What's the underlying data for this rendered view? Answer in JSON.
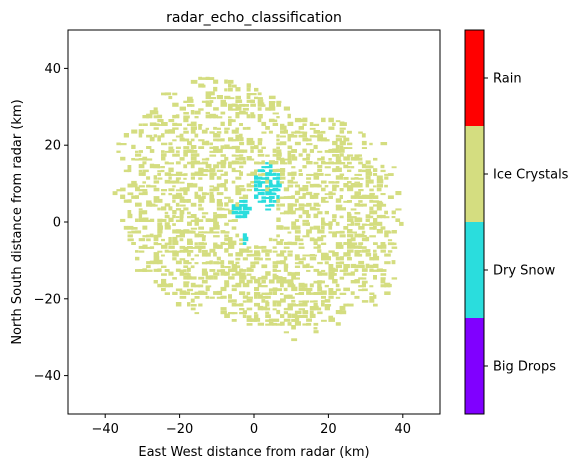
{
  "chart_data": {
    "type": "heatmap",
    "title": "radar_echo_classification",
    "xlabel": "East West distance from radar (km)",
    "ylabel": "North South distance from radar (km)",
    "xlim": [
      -50,
      50
    ],
    "ylim": [
      -50,
      50
    ],
    "xticks": [
      -40,
      -20,
      0,
      20,
      40
    ],
    "yticks": [
      -40,
      -20,
      0,
      20,
      40
    ],
    "xtick_labels": [
      "−40",
      "−20",
      "0",
      "20",
      "40"
    ],
    "ytick_labels": [
      "−40",
      "−20",
      "0",
      "20",
      "40"
    ],
    "grid": false,
    "colorbar": {
      "position": "right",
      "categories": [
        {
          "label": "Big Drops",
          "color": "#8000ff"
        },
        {
          "label": "Dry Snow",
          "color": "#2adddd"
        },
        {
          "label": "Ice Crystals",
          "color": "#d4dd80"
        },
        {
          "label": "Rain",
          "color": "#ff0000"
        }
      ]
    },
    "field": {
      "radius_min_km": 6,
      "radius_max_by_bearing_deg": [
        [
          0,
          37
        ],
        [
          20,
          30
        ],
        [
          40,
          36
        ],
        [
          60,
          40
        ],
        [
          80,
          40
        ],
        [
          100,
          40
        ],
        [
          120,
          41
        ],
        [
          140,
          35
        ],
        [
          160,
          33
        ],
        [
          180,
          29
        ],
        [
          200,
          27
        ],
        [
          220,
          30
        ],
        [
          240,
          33
        ],
        [
          260,
          37
        ],
        [
          280,
          40
        ],
        [
          300,
          43
        ],
        [
          320,
          42
        ],
        [
          340,
          40
        ],
        [
          360,
          37
        ]
      ],
      "dry_snow_patches_km": [
        {
          "x": 3,
          "y": 9,
          "rx": 3.5,
          "ry": 6
        },
        {
          "x": -4,
          "y": 3,
          "rx": 2.5,
          "ry": 2.5
        },
        {
          "x": -3,
          "y": -5,
          "rx": 1.2,
          "ry": 1.6
        }
      ]
    }
  }
}
